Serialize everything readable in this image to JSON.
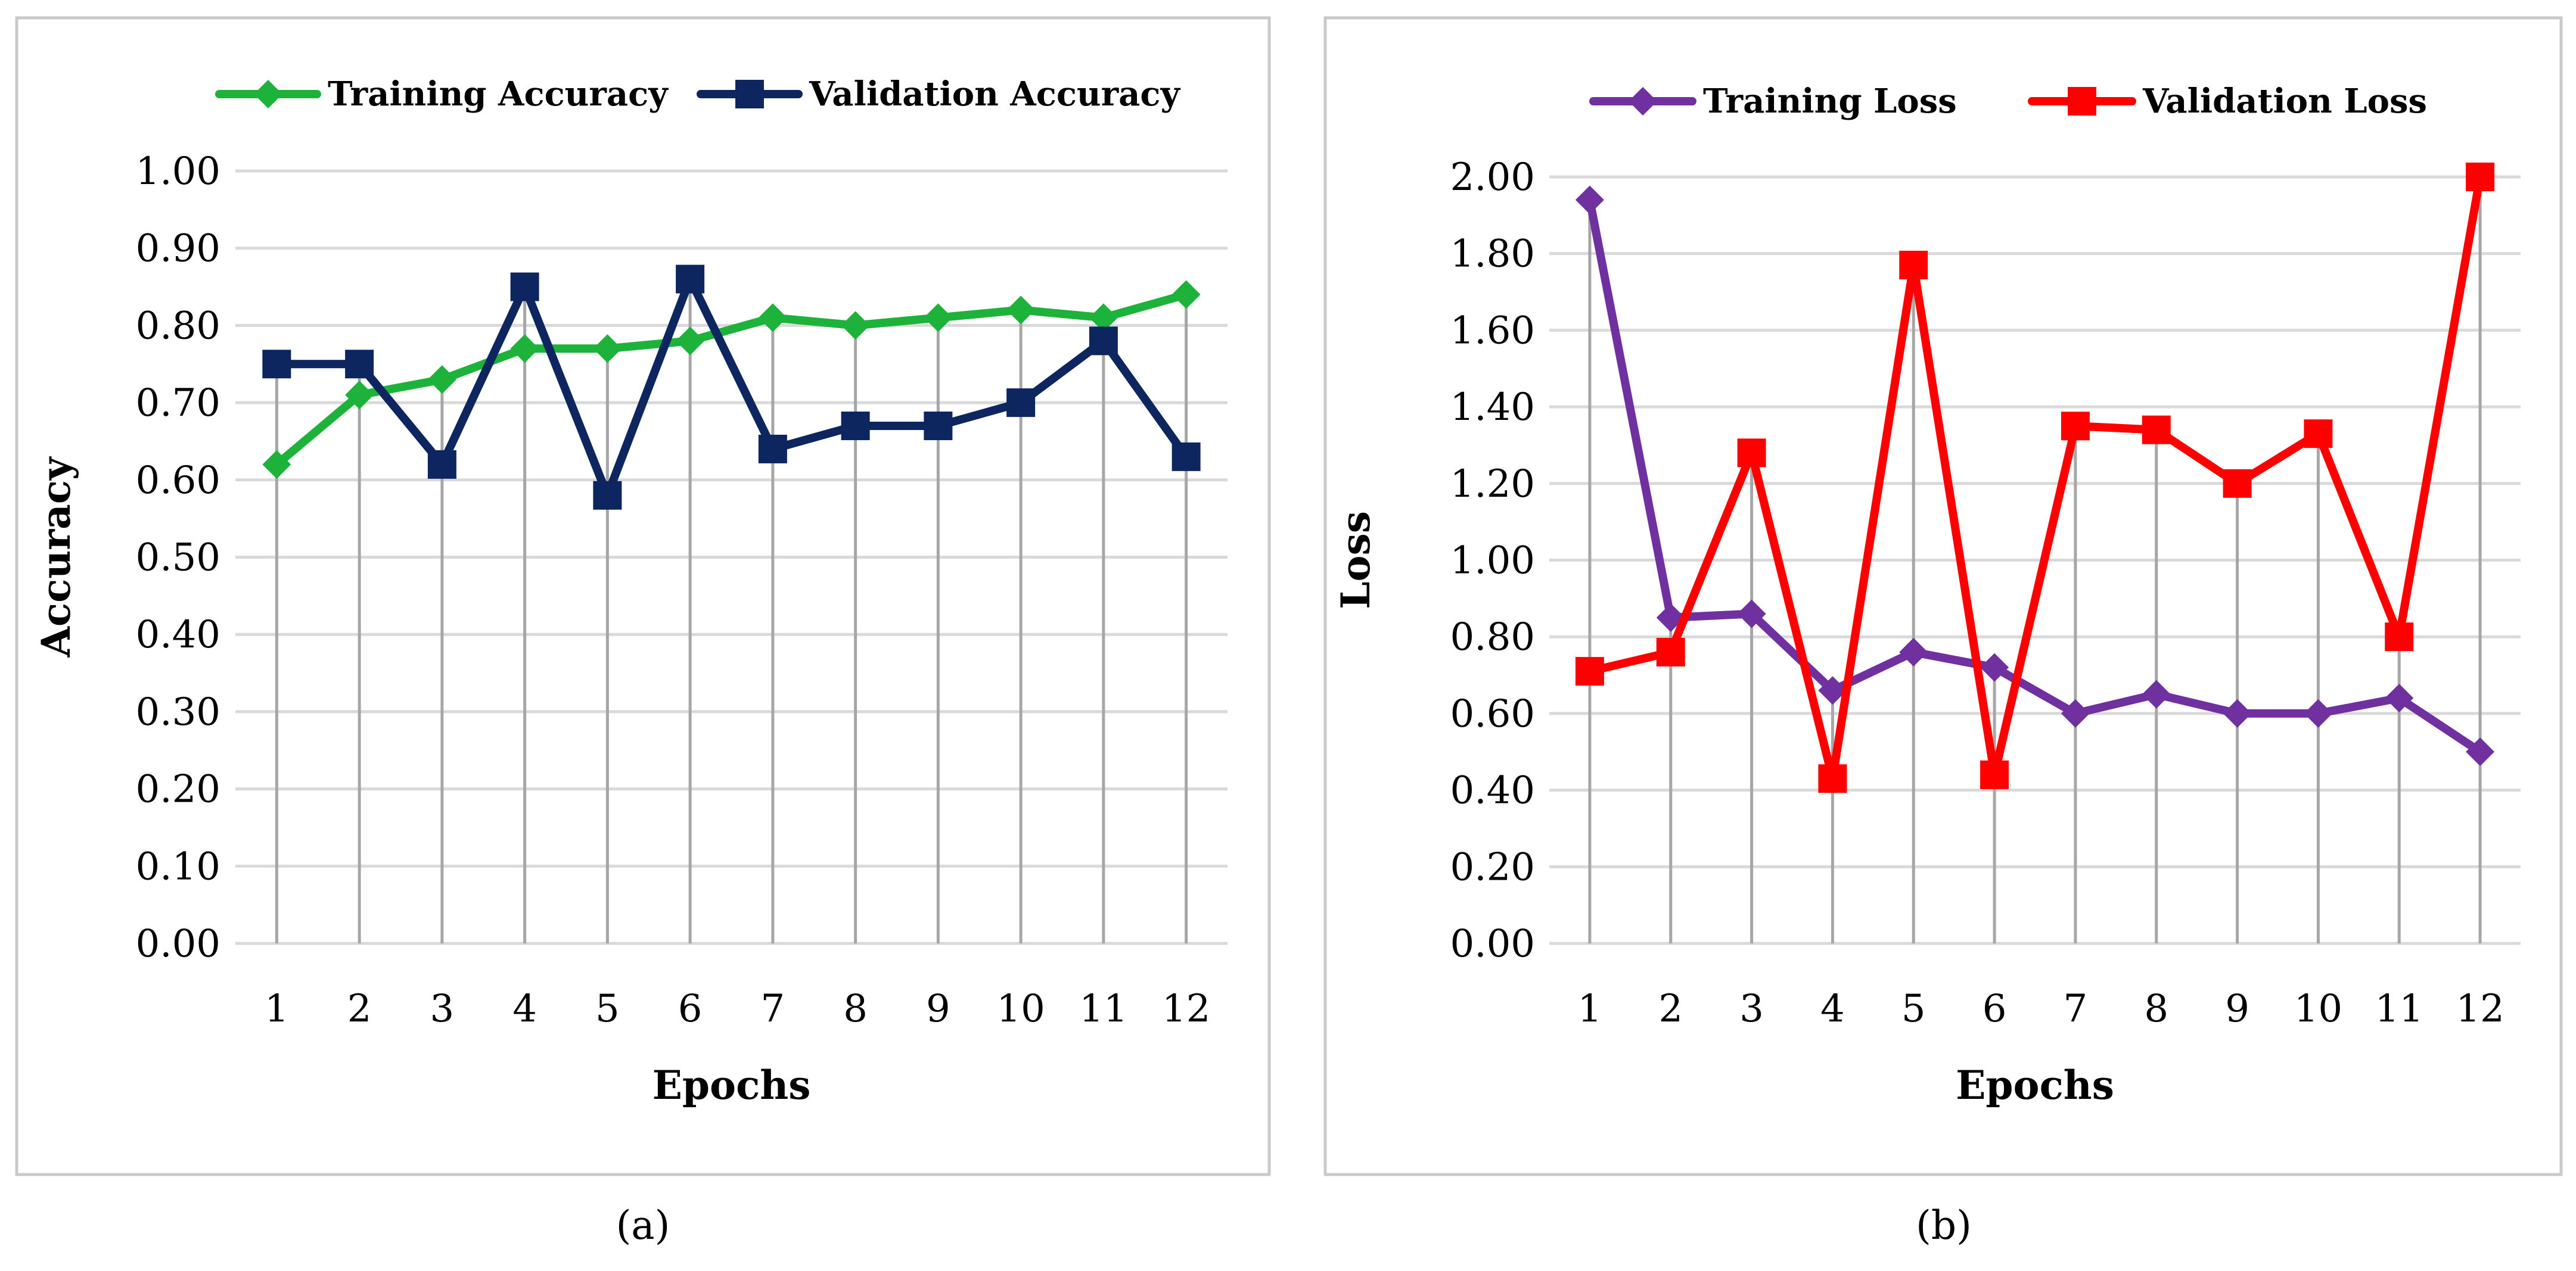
{
  "captions": [
    "(a)",
    "(b)"
  ],
  "chart_data": [
    {
      "type": "line",
      "panel": "a",
      "title": "",
      "xlabel": "Epochs",
      "ylabel": "Accuracy",
      "categories": [
        "1",
        "2",
        "3",
        "4",
        "5",
        "6",
        "7",
        "8",
        "9",
        "10",
        "11",
        "12"
      ],
      "ylim": [
        0,
        1.0
      ],
      "ystep": 0.1,
      "yticks": [
        "0.00",
        "0.10",
        "0.20",
        "0.30",
        "0.40",
        "0.50",
        "0.60",
        "0.70",
        "0.80",
        "0.90",
        "1.00"
      ],
      "grid": true,
      "drop_lines": true,
      "legend_position": "top",
      "series": [
        {
          "name": "Training Accuracy",
          "color": "#1db33b",
          "marker": "diamond",
          "values": [
            0.62,
            0.71,
            0.73,
            0.77,
            0.77,
            0.78,
            0.81,
            0.8,
            0.81,
            0.82,
            0.81,
            0.84
          ]
        },
        {
          "name": "Validation Accuracy",
          "color": "#0d2660",
          "marker": "square",
          "values": [
            0.75,
            0.75,
            0.62,
            0.85,
            0.58,
            0.86,
            0.64,
            0.67,
            0.67,
            0.7,
            0.78,
            0.63
          ]
        }
      ]
    },
    {
      "type": "line",
      "panel": "b",
      "title": "",
      "xlabel": "Epochs",
      "ylabel": "Loss",
      "categories": [
        "1",
        "2",
        "3",
        "4",
        "5",
        "6",
        "7",
        "8",
        "9",
        "10",
        "11",
        "12"
      ],
      "ylim": [
        0,
        2.0
      ],
      "ystep": 0.2,
      "yticks": [
        "0.00",
        "0.20",
        "0.40",
        "0.60",
        "0.80",
        "1.00",
        "1.20",
        "1.40",
        "1.60",
        "1.80",
        "2.00"
      ],
      "grid": true,
      "drop_lines": true,
      "legend_position": "top",
      "series": [
        {
          "name": "Training Loss",
          "color": "#7030a0",
          "marker": "diamond",
          "values": [
            1.94,
            0.85,
            0.86,
            0.66,
            0.76,
            0.72,
            0.6,
            0.65,
            0.6,
            0.6,
            0.64,
            0.5
          ]
        },
        {
          "name": "Validation Loss",
          "color": "#ff0000",
          "marker": "square",
          "values": [
            0.71,
            0.76,
            1.28,
            0.43,
            1.77,
            0.44,
            1.35,
            1.34,
            1.2,
            1.33,
            0.8,
            2.0
          ]
        }
      ]
    }
  ]
}
